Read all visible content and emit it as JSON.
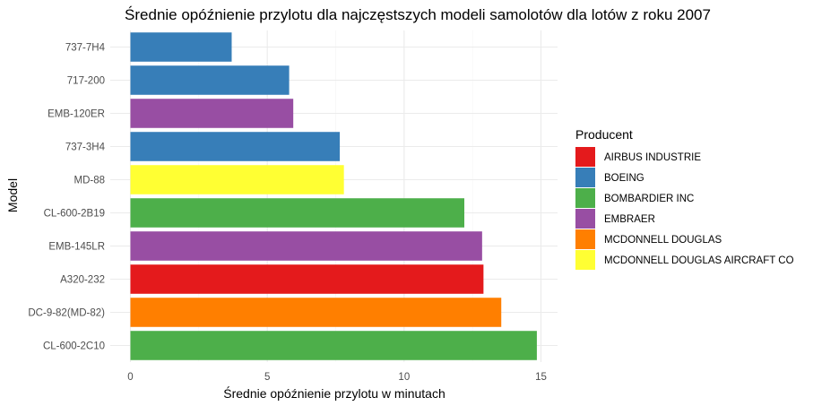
{
  "chart_data": {
    "type": "bar",
    "orientation": "horizontal",
    "title": "Średnie opóźnienie przylotu dla najczęstszych modeli samolotów dla lotów z roku 2007",
    "xlabel": "Średnie opóźnienie przylotu w minutach",
    "ylabel": "Model",
    "xlim": [
      0,
      15
    ],
    "x_ticks": [
      0,
      5,
      10,
      15
    ],
    "grid": true,
    "legend": {
      "title": "Producent",
      "position": "right",
      "entries": [
        {
          "name": "AIRBUS INDUSTRIE",
          "color": "#E41A1C"
        },
        {
          "name": "BOEING",
          "color": "#377EB8"
        },
        {
          "name": "BOMBARDIER INC",
          "color": "#4DAF4A"
        },
        {
          "name": "EMBRAER",
          "color": "#984EA3"
        },
        {
          "name": "MCDONNELL DOUGLAS",
          "color": "#FF7F00"
        },
        {
          "name": "MCDONNELL DOUGLAS AIRCRAFT CO",
          "color": "#FFFF33"
        }
      ]
    },
    "bars": [
      {
        "model": "737-7H4",
        "value": 3.7,
        "producer": "BOEING"
      },
      {
        "model": "717-200",
        "value": 5.8,
        "producer": "BOEING"
      },
      {
        "model": "EMB-120ER",
        "value": 5.95,
        "producer": "EMBRAER"
      },
      {
        "model": "737-3H4",
        "value": 7.65,
        "producer": "BOEING"
      },
      {
        "model": "MD-88",
        "value": 7.8,
        "producer": "MCDONNELL DOUGLAS AIRCRAFT CO"
      },
      {
        "model": "CL-600-2B19",
        "value": 12.2,
        "producer": "BOMBARDIER INC"
      },
      {
        "model": "EMB-145LR",
        "value": 12.85,
        "producer": "EMBRAER"
      },
      {
        "model": "A320-232",
        "value": 12.9,
        "producer": "AIRBUS INDUSTRIE"
      },
      {
        "model": "DC-9-82(MD-82)",
        "value": 13.55,
        "producer": "MCDONNELL DOUGLAS"
      },
      {
        "model": "CL-600-2C10",
        "value": 14.85,
        "producer": "BOMBARDIER INC"
      }
    ]
  }
}
